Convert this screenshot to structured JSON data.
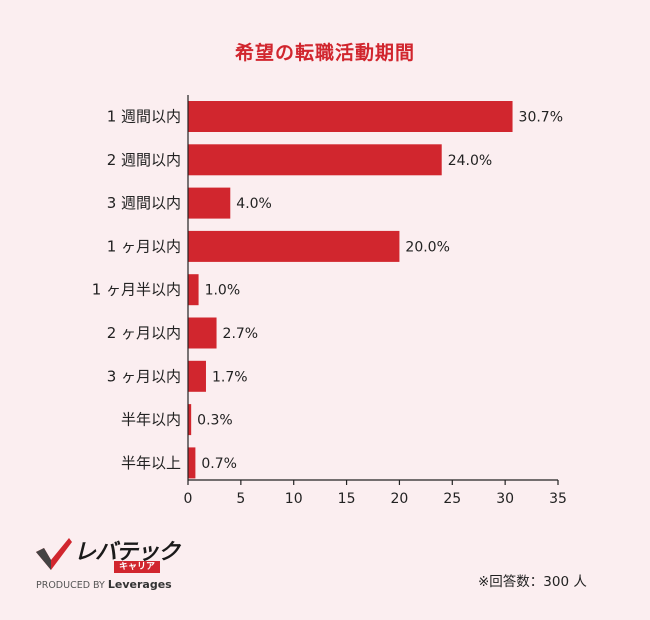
{
  "chart_data": {
    "type": "bar",
    "orientation": "horizontal",
    "title": "希望の転職活動期間",
    "categories": [
      "1 週間以内",
      "2 週間以内",
      "3 週間以内",
      "1 ヶ月以内",
      "1 ヶ月半以内",
      "2 ヶ月以内",
      "3 ヶ月以内",
      "半年以内",
      "半年以上"
    ],
    "values": [
      30.7,
      24.0,
      4.0,
      20.0,
      1.0,
      2.7,
      1.7,
      0.3,
      0.7
    ],
    "value_labels": [
      "30.7%",
      "24.0%",
      "4.0%",
      "20.0%",
      "1.0%",
      "2.7%",
      "1.7%",
      "0.3%",
      "0.7%"
    ],
    "xlim": [
      0,
      35
    ],
    "xticks": [
      "0",
      "5",
      "10",
      "15",
      "20",
      "25",
      "30",
      "35"
    ],
    "bar_color": "#d1262e",
    "grid": false,
    "legend": "none"
  },
  "logo": {
    "name": "レバテック",
    "sub": "キャリア",
    "produced_by": "PRODUCED BY",
    "brand": "Leverages"
  },
  "footnote": "※回答数：300 人",
  "colors": {
    "background": "#fbeef0",
    "accent": "#d1262e"
  }
}
